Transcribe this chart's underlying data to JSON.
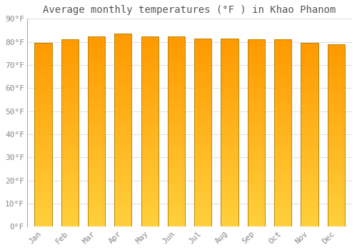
{
  "title": "Average monthly temperatures (°F ) in Khao Phanom",
  "months": [
    "Jan",
    "Feb",
    "Mar",
    "Apr",
    "May",
    "Jun",
    "Jul",
    "Aug",
    "Sep",
    "Oct",
    "Nov",
    "Dec"
  ],
  "values": [
    79.5,
    81.0,
    82.5,
    83.5,
    82.5,
    82.5,
    81.5,
    81.5,
    81.0,
    81.0,
    79.5,
    79.0
  ],
  "ylim": [
    0,
    90
  ],
  "yticks": [
    0,
    10,
    20,
    30,
    40,
    50,
    60,
    70,
    80,
    90
  ],
  "ytick_labels": [
    "0°F",
    "10°F",
    "20°F",
    "30°F",
    "40°F",
    "50°F",
    "60°F",
    "70°F",
    "80°F",
    "90°F"
  ],
  "bar_color_top": "#F5A623",
  "bar_color_bottom": "#FFD060",
  "bar_edge_color": "#B8860B",
  "background_color": "#FFFFFF",
  "grid_color": "#DDDDDD",
  "title_fontsize": 10,
  "tick_fontsize": 8,
  "bar_width": 0.65
}
